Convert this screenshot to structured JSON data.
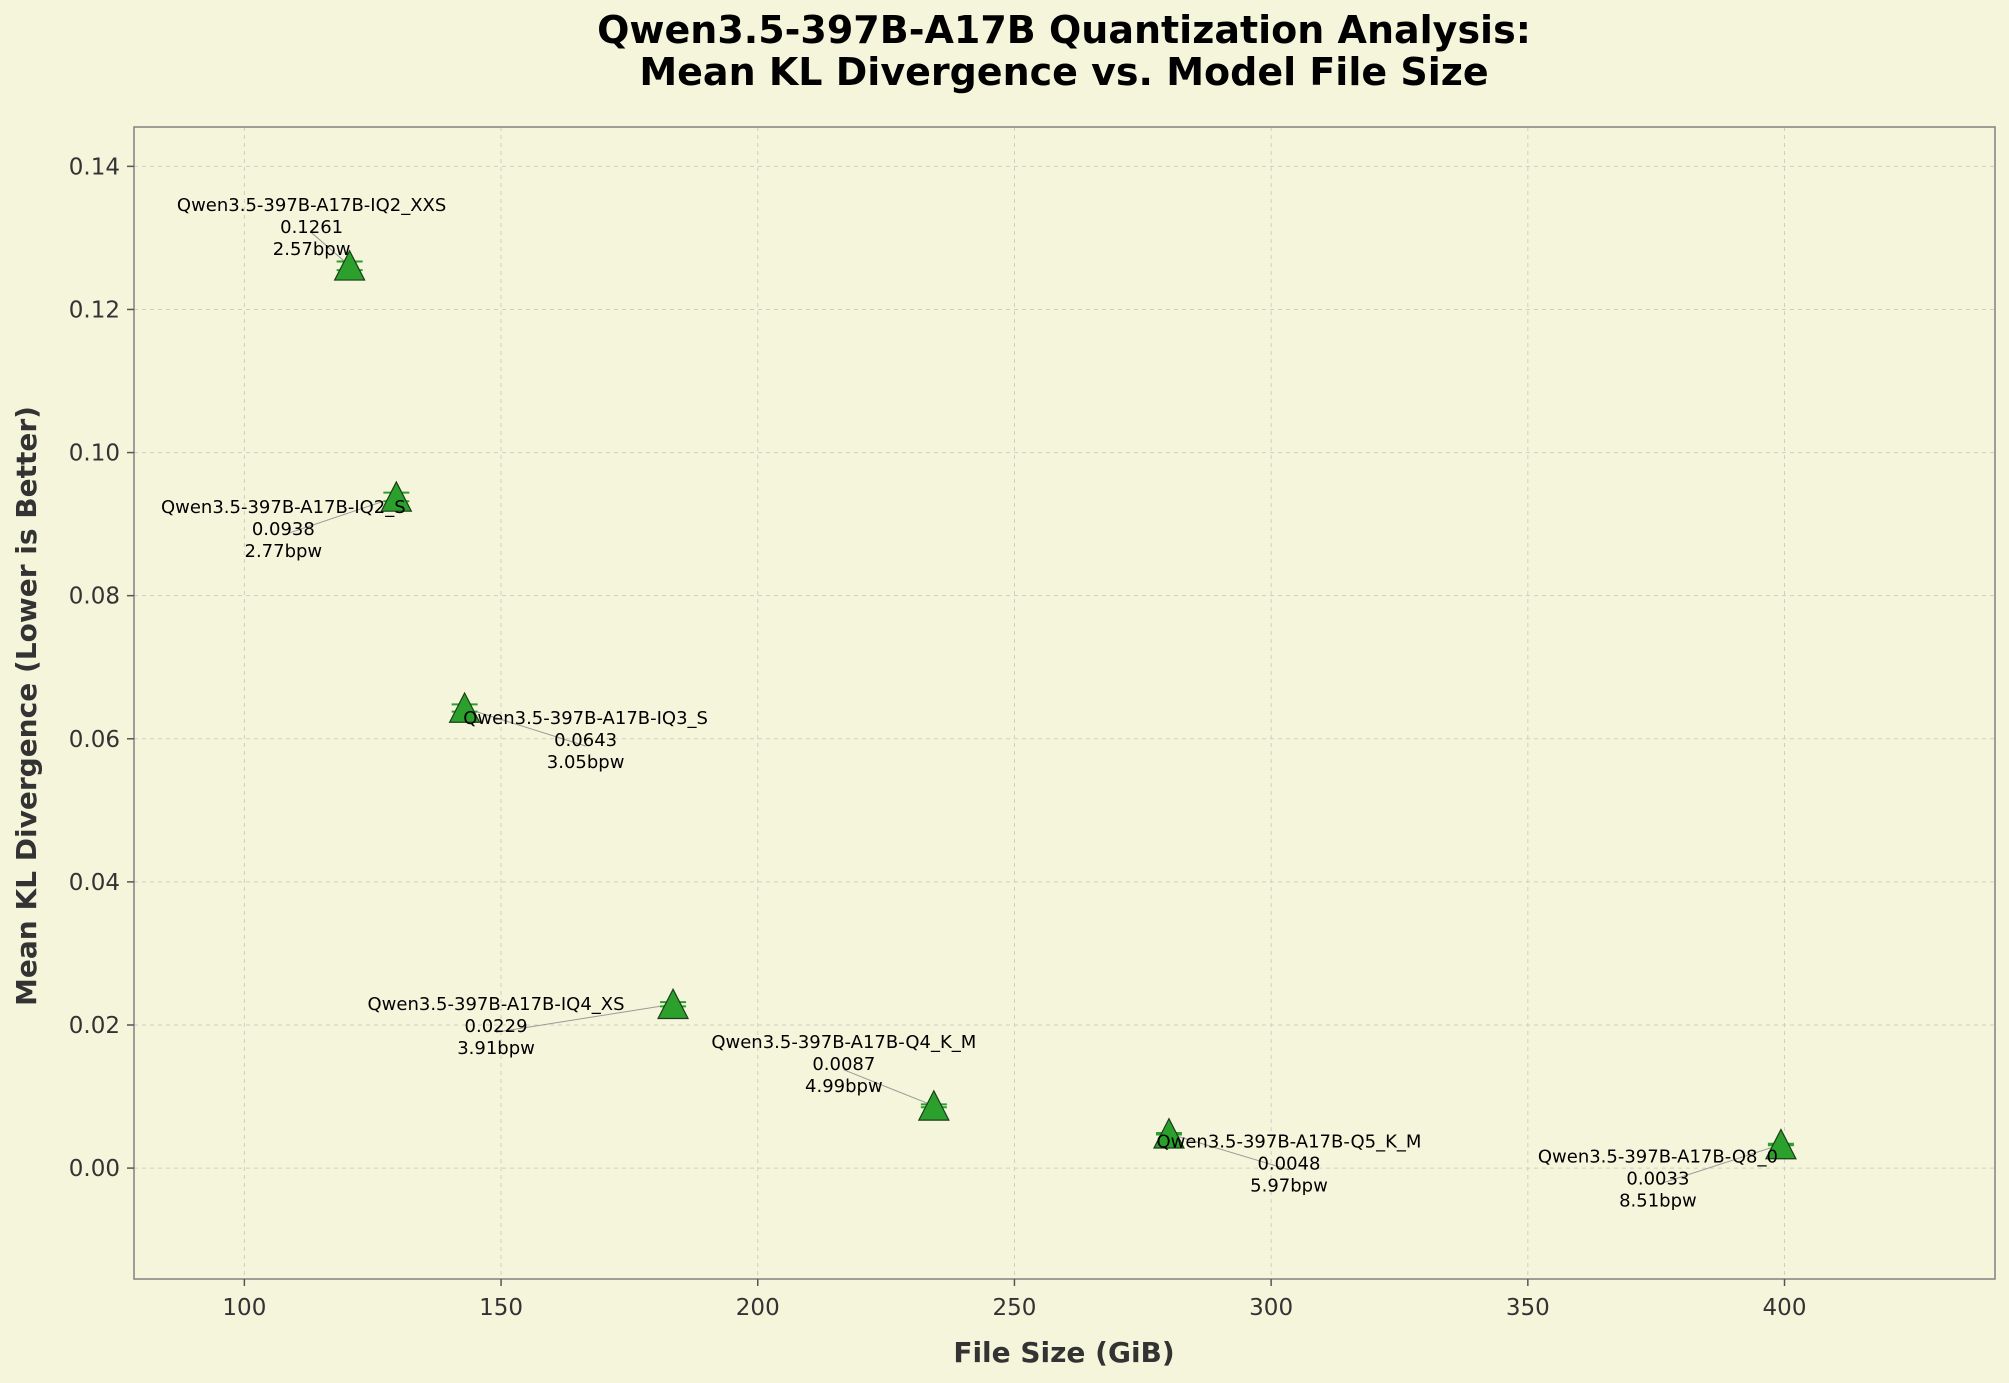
{
  "chart_data": {
    "type": "scatter",
    "title_lines": [
      "Qwen3.5-397B-A17B Quantization Analysis:",
      "Mean KL Divergence vs. Model File Size"
    ],
    "xlabel": "File Size (GiB)",
    "ylabel": "Mean KL Divergence (Lower is Better)",
    "xlim": [
      78.5,
      441
    ],
    "ylim": [
      -0.0155,
      0.1455
    ],
    "xticks": [
      100,
      150,
      200,
      250,
      300,
      350,
      400
    ],
    "xtick_labels": [
      "100",
      "150",
      "200",
      "250",
      "300",
      "350",
      "400"
    ],
    "yticks": [
      0.0,
      0.02,
      0.04,
      0.06,
      0.08,
      0.1,
      0.12,
      0.14
    ],
    "ytick_labels": [
      "0.00",
      "0.02",
      "0.04",
      "0.06",
      "0.08",
      "0.10",
      "0.12",
      "0.14"
    ],
    "grid": true,
    "marker": "triangle",
    "marker_color": "#2ca02c",
    "background_color": "#f5f5dc",
    "points": [
      {
        "name": "Qwen3.5-397B-A17B-IQ2_XXS",
        "x": 120.5,
        "y": 0.1261,
        "value_label": "0.1261",
        "bpw": "2.57bpw",
        "err": 0.0006
      },
      {
        "name": "Qwen3.5-397B-A17B-IQ2_S",
        "x": 129.6,
        "y": 0.0938,
        "value_label": "0.0938",
        "bpw": "2.77bpw",
        "err": 0.0006
      },
      {
        "name": "Qwen3.5-397B-A17B-IQ3_S",
        "x": 142.9,
        "y": 0.0643,
        "value_label": "0.0643",
        "bpw": "3.05bpw",
        "err": 0.0005
      },
      {
        "name": "Qwen3.5-397B-A17B-IQ4_XS",
        "x": 183.5,
        "y": 0.0229,
        "value_label": "0.0229",
        "bpw": "3.91bpw",
        "err": 0.0003
      },
      {
        "name": "Qwen3.5-397B-A17B-Q4_K_M",
        "x": 234.3,
        "y": 0.0087,
        "value_label": "0.0087",
        "bpw": "4.99bpw",
        "err": 0.0002
      },
      {
        "name": "Qwen3.5-397B-A17B-Q5_K_M",
        "x": 280.1,
        "y": 0.0048,
        "value_label": "0.0048",
        "bpw": "5.97bpw",
        "err": 0.0001
      },
      {
        "name": "Qwen3.5-397B-A17B-Q8_0",
        "x": 399.3,
        "y": 0.0033,
        "value_label": "0.0033",
        "bpw": "8.51bpw",
        "err": 0.0001
      }
    ]
  }
}
